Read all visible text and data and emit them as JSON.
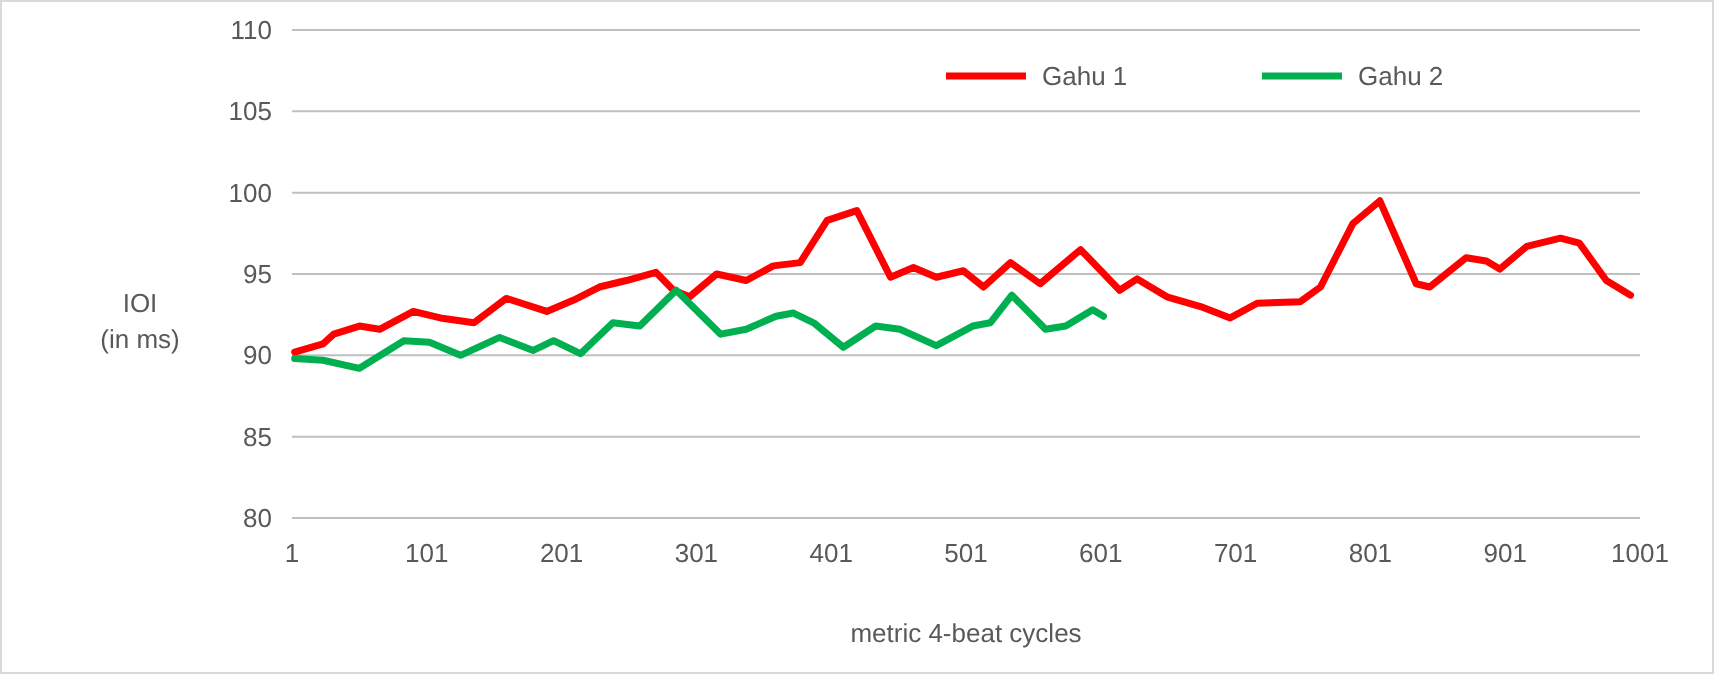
{
  "chart_data": {
    "type": "line",
    "xlabel": "metric 4-beat cycles",
    "ylabel": "IOI\n(in ms)",
    "xlim": [
      1,
      1001
    ],
    "xticks": [
      1,
      101,
      201,
      301,
      401,
      501,
      601,
      701,
      801,
      901,
      1001
    ],
    "ylim": [
      80,
      110
    ],
    "yticks": [
      80,
      85,
      90,
      95,
      100,
      105,
      110
    ],
    "grid": "y",
    "legend": "top right",
    "marker": "none",
    "line_style": "solid",
    "series": [
      {
        "name": "Gahu 1",
        "color": "#ff0000",
        "x": [
          3,
          24,
          32,
          51,
          66,
          91,
          111,
          136,
          160,
          190,
          210,
          229,
          249,
          271,
          284,
          296,
          316,
          338,
          358,
          378,
          398,
          420,
          445,
          462,
          479,
          499,
          514,
          534,
          556,
          586,
          615,
          628,
          650,
          675,
          697,
          717,
          749,
          764,
          788,
          808,
          835,
          845,
          872,
          887,
          897,
          917,
          942,
          956,
          976,
          994
        ],
        "values": [
          90.2,
          90.7,
          91.3,
          91.8,
          91.6,
          92.7,
          92.3,
          92.0,
          93.5,
          92.7,
          93.4,
          94.2,
          94.6,
          95.1,
          94.0,
          93.6,
          95.0,
          94.6,
          95.5,
          95.7,
          98.3,
          98.9,
          94.8,
          95.4,
          94.8,
          95.2,
          94.2,
          95.7,
          94.4,
          96.5,
          94.0,
          94.7,
          93.6,
          93.0,
          92.3,
          93.2,
          93.3,
          94.2,
          98.1,
          99.5,
          94.4,
          94.2,
          96.0,
          95.8,
          95.3,
          96.7,
          97.2,
          96.9,
          94.6,
          93.7
        ]
      },
      {
        "name": "Gahu 2",
        "color": "#00b050",
        "x": [
          3,
          24,
          51,
          84,
          103,
          126,
          155,
          180,
          195,
          215,
          239,
          259,
          286,
          319,
          338,
          360,
          373,
          388,
          410,
          434,
          452,
          479,
          506,
          519,
          535,
          560,
          575,
          595,
          603
        ],
        "values": [
          89.8,
          89.7,
          89.2,
          90.9,
          90.8,
          90.0,
          91.1,
          90.3,
          90.9,
          90.1,
          92.0,
          91.8,
          94.0,
          91.3,
          91.6,
          92.4,
          92.6,
          92.0,
          90.5,
          91.8,
          91.6,
          90.6,
          91.8,
          92.0,
          93.7,
          91.6,
          91.8,
          92.8,
          92.4
        ]
      }
    ]
  }
}
